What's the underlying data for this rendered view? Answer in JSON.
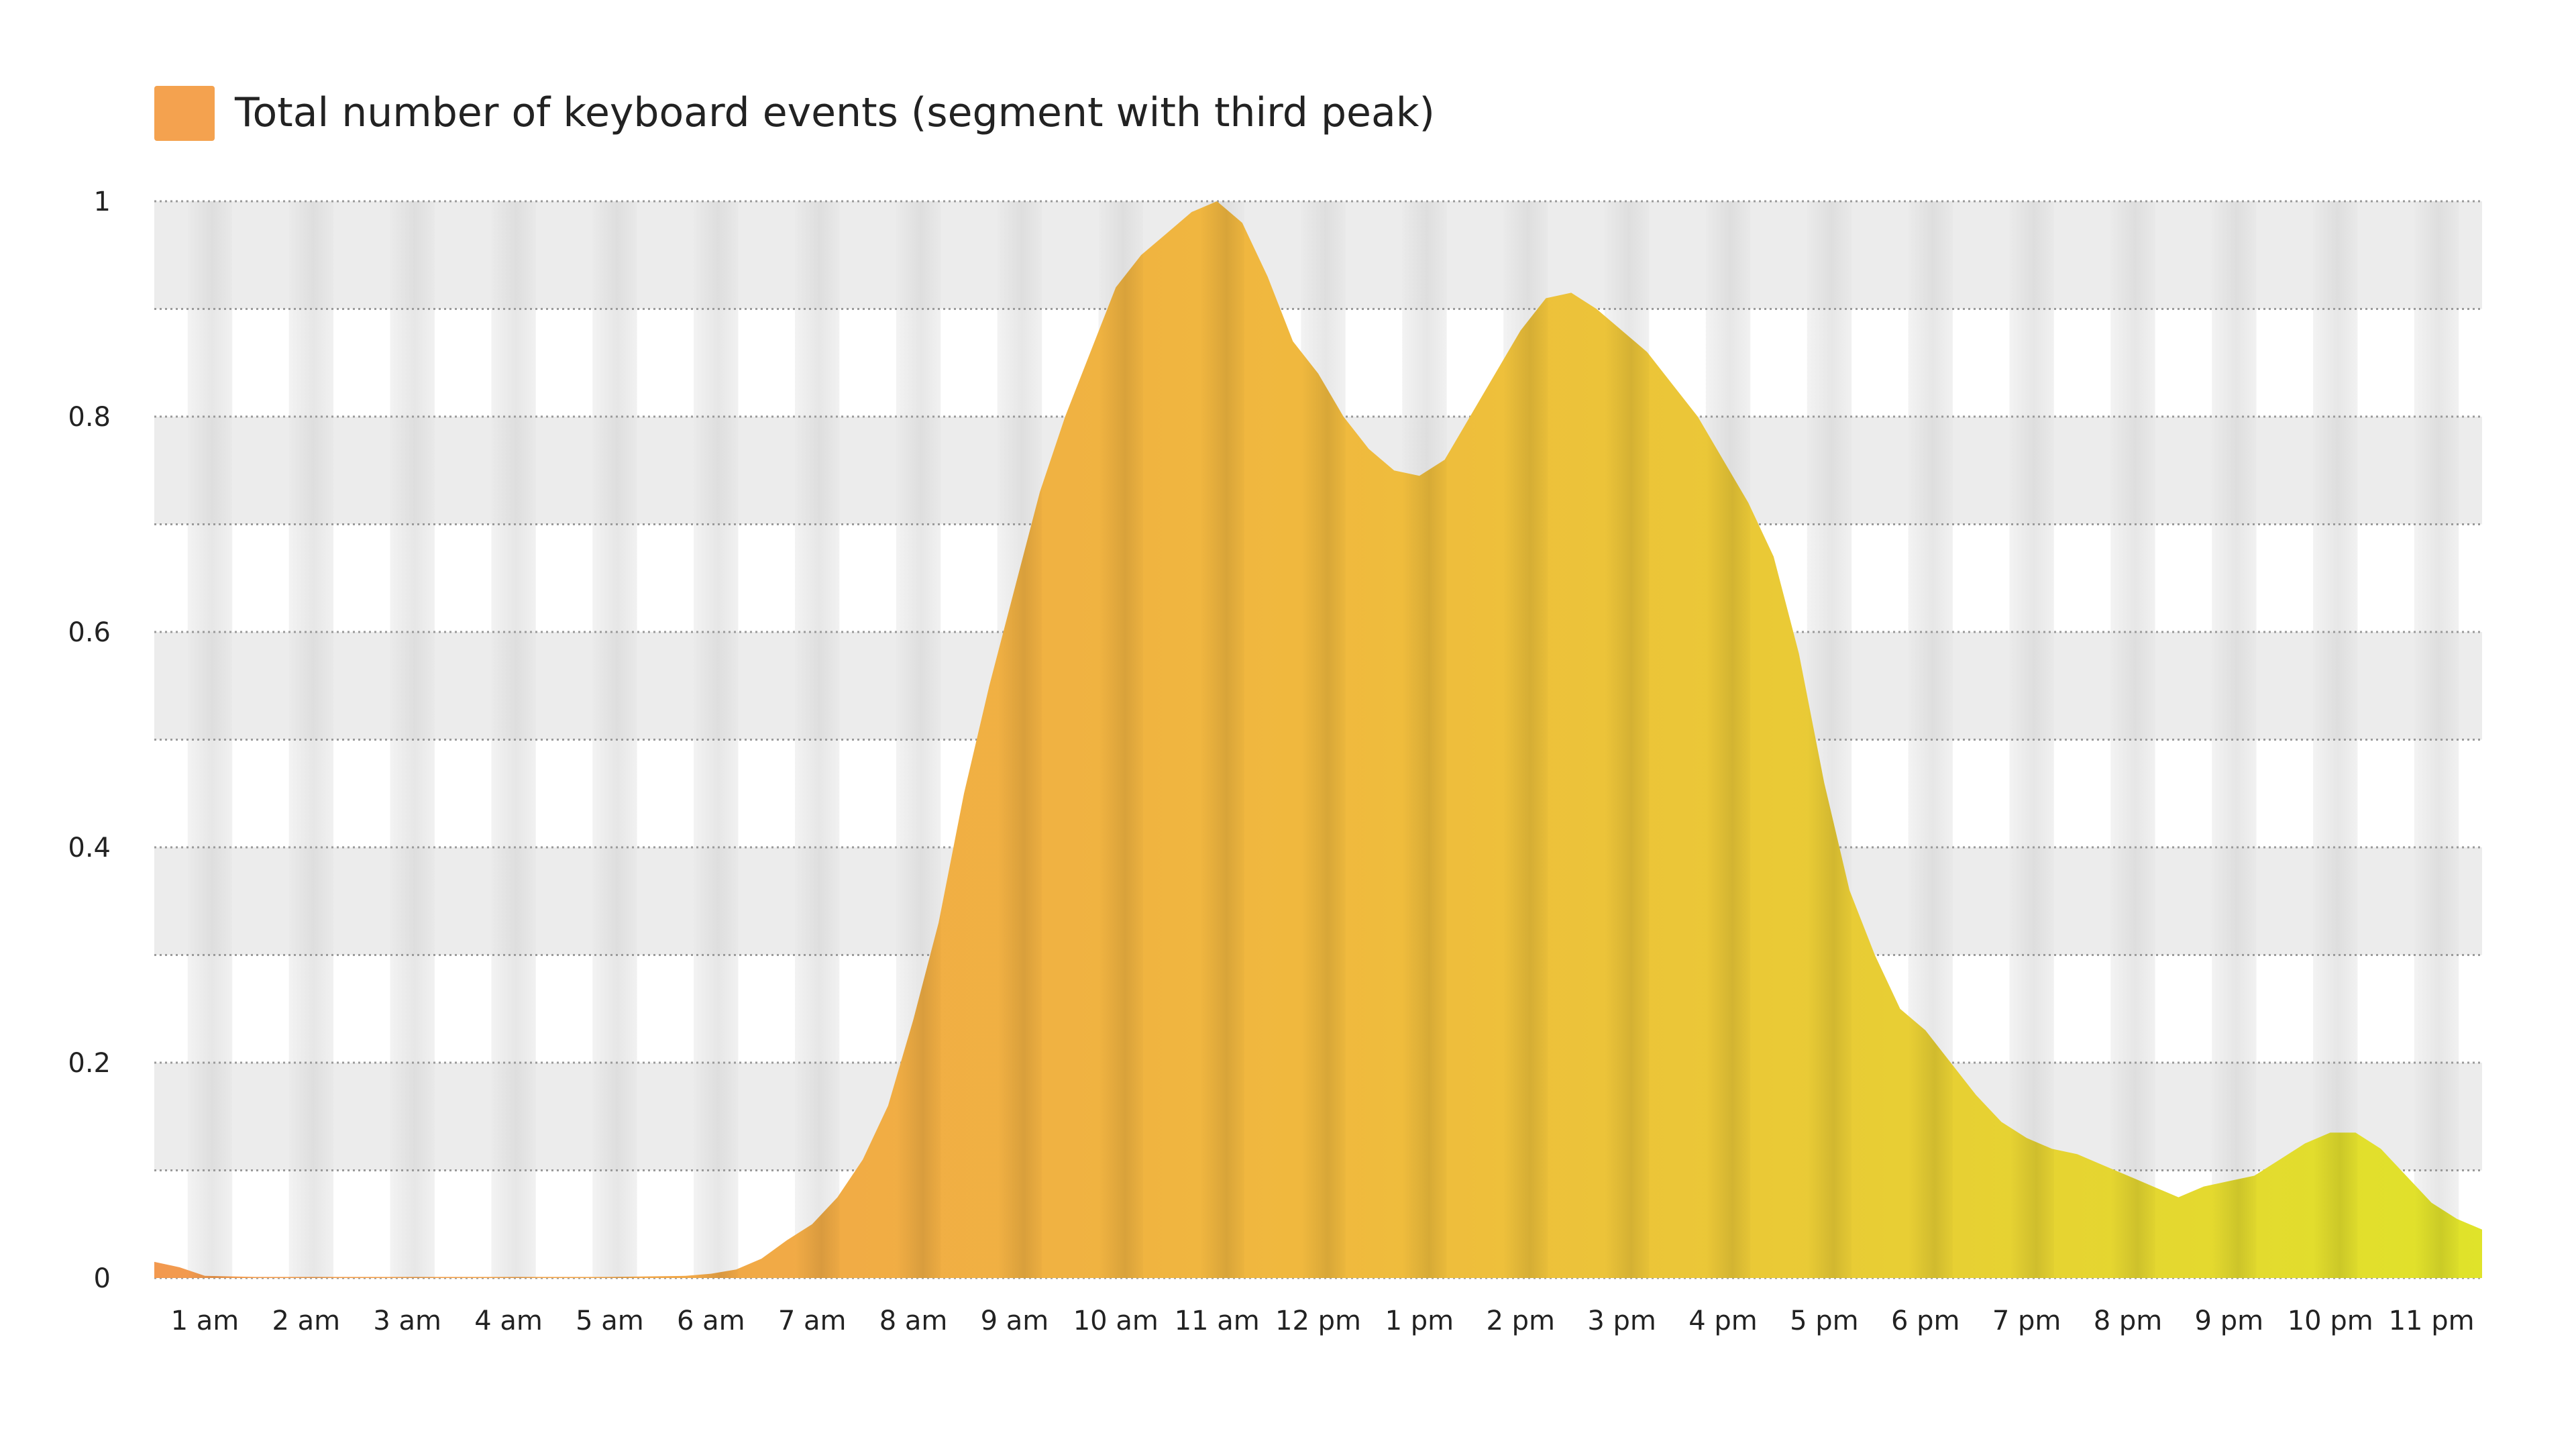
{
  "chart_data": {
    "type": "area",
    "title": "",
    "xlabel": "",
    "ylabel": "",
    "xlim": [
      0.5,
      23.5
    ],
    "ylim": [
      0,
      1
    ],
    "y_ticks": [
      0,
      0.2,
      0.4,
      0.6,
      0.8,
      1
    ],
    "y_tick_labels": [
      "0",
      "0.2",
      "0.4",
      "0.6",
      "0.8",
      "1"
    ],
    "x_ticks": [
      1,
      2,
      3,
      4,
      5,
      6,
      7,
      8,
      9,
      10,
      11,
      12,
      13,
      14,
      15,
      16,
      17,
      18,
      19,
      20,
      21,
      22,
      23
    ],
    "x_tick_labels": [
      "1 am",
      "2 am",
      "3 am",
      "4 am",
      "5 am",
      "6 am",
      "7 am",
      "8 am",
      "9 am",
      "10 am",
      "11 am",
      "12 pm",
      "1 pm",
      "2 pm",
      "3 pm",
      "4 pm",
      "5 pm",
      "6 pm",
      "7 pm",
      "8 pm",
      "9 pm",
      "10 pm",
      "11 pm"
    ],
    "grid": true,
    "legend": {
      "position": "top-left",
      "entries": [
        {
          "name": "Total number of keyboard events (segment with third peak)",
          "color": "#f4a24f"
        }
      ]
    },
    "series": [
      {
        "name": "Total number of keyboard events (segment with third peak)",
        "gradient_colors": [
          "#f2994f",
          "#f0b93e",
          "#e0e32a"
        ],
        "points": [
          [
            0.5,
            0.015
          ],
          [
            0.75,
            0.01
          ],
          [
            1.0,
            0.002
          ],
          [
            1.5,
            0.001
          ],
          [
            2.0,
            0.001
          ],
          [
            3.0,
            0.001
          ],
          [
            4.0,
            0.001
          ],
          [
            5.0,
            0.001
          ],
          [
            5.75,
            0.002
          ],
          [
            6.0,
            0.004
          ],
          [
            6.25,
            0.008
          ],
          [
            6.5,
            0.018
          ],
          [
            6.75,
            0.035
          ],
          [
            7.0,
            0.05
          ],
          [
            7.25,
            0.075
          ],
          [
            7.5,
            0.11
          ],
          [
            7.75,
            0.16
          ],
          [
            8.0,
            0.24
          ],
          [
            8.25,
            0.33
          ],
          [
            8.5,
            0.45
          ],
          [
            8.75,
            0.55
          ],
          [
            9.0,
            0.64
          ],
          [
            9.25,
            0.73
          ],
          [
            9.5,
            0.8
          ],
          [
            9.75,
            0.86
          ],
          [
            10.0,
            0.92
          ],
          [
            10.25,
            0.95
          ],
          [
            10.5,
            0.97
          ],
          [
            10.75,
            0.99
          ],
          [
            11.0,
            1.0
          ],
          [
            11.25,
            0.98
          ],
          [
            11.5,
            0.93
          ],
          [
            11.75,
            0.87
          ],
          [
            12.0,
            0.84
          ],
          [
            12.25,
            0.8
          ],
          [
            12.5,
            0.77
          ],
          [
            12.75,
            0.75
          ],
          [
            13.0,
            0.745
          ],
          [
            13.25,
            0.76
          ],
          [
            13.5,
            0.8
          ],
          [
            13.75,
            0.84
          ],
          [
            14.0,
            0.88
          ],
          [
            14.25,
            0.91
          ],
          [
            14.5,
            0.915
          ],
          [
            14.75,
            0.9
          ],
          [
            15.0,
            0.88
          ],
          [
            15.25,
            0.86
          ],
          [
            15.5,
            0.83
          ],
          [
            15.75,
            0.8
          ],
          [
            16.0,
            0.76
          ],
          [
            16.25,
            0.72
          ],
          [
            16.5,
            0.67
          ],
          [
            16.75,
            0.58
          ],
          [
            17.0,
            0.46
          ],
          [
            17.25,
            0.36
          ],
          [
            17.5,
            0.3
          ],
          [
            17.75,
            0.25
          ],
          [
            18.0,
            0.23
          ],
          [
            18.25,
            0.2
          ],
          [
            18.5,
            0.17
          ],
          [
            18.75,
            0.145
          ],
          [
            19.0,
            0.13
          ],
          [
            19.25,
            0.12
          ],
          [
            19.5,
            0.115
          ],
          [
            19.75,
            0.105
          ],
          [
            20.0,
            0.095
          ],
          [
            20.25,
            0.085
          ],
          [
            20.5,
            0.075
          ],
          [
            20.75,
            0.085
          ],
          [
            21.0,
            0.09
          ],
          [
            21.25,
            0.095
          ],
          [
            21.5,
            0.11
          ],
          [
            21.75,
            0.125
          ],
          [
            22.0,
            0.135
          ],
          [
            22.25,
            0.135
          ],
          [
            22.5,
            0.12
          ],
          [
            22.75,
            0.095
          ],
          [
            23.0,
            0.07
          ],
          [
            23.25,
            0.055
          ],
          [
            23.5,
            0.045
          ]
        ]
      }
    ]
  }
}
